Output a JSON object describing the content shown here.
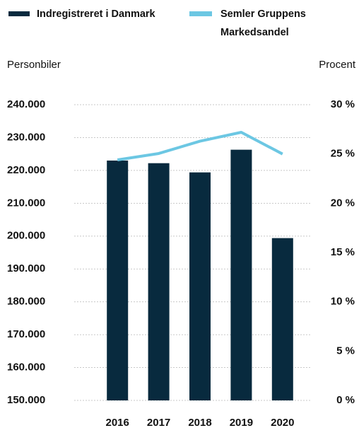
{
  "chart_data": {
    "type": "bar",
    "y_label": "Personbiler",
    "y2_label": "Procent",
    "categories": [
      "2016",
      "2017",
      "2018",
      "2019",
      "2020"
    ],
    "series": [
      {
        "name": "Indregistreret i Danmark",
        "type": "bar",
        "color": "#082a3e",
        "values": [
          223000,
          222200,
          219400,
          226300,
          199400
        ]
      },
      {
        "name": "Semler Gruppens Markedsandel",
        "type": "line",
        "axis": "y2",
        "color": "#6cc7e3",
        "values": [
          24.4,
          25.05,
          26.3,
          27.2,
          25.0
        ]
      }
    ],
    "ylim": [
      150000,
      240000
    ],
    "yticks": [
      {
        "value": 150000,
        "label": "150.000"
      },
      {
        "value": 160000,
        "label": "160.000"
      },
      {
        "value": 170000,
        "label": "170.000"
      },
      {
        "value": 180000,
        "label": "180.000"
      },
      {
        "value": 190000,
        "label": "190.000"
      },
      {
        "value": 200000,
        "label": "200.000"
      },
      {
        "value": 210000,
        "label": "210.000"
      },
      {
        "value": 220000,
        "label": "220.000"
      },
      {
        "value": 230000,
        "label": "230.000"
      },
      {
        "value": 240000,
        "label": "240.000"
      }
    ],
    "y2lim": [
      0,
      30
    ],
    "y2ticks": [
      {
        "value": 0,
        "label": "0 %"
      },
      {
        "value": 5,
        "label": "5 %"
      },
      {
        "value": 10,
        "label": "10 %"
      },
      {
        "value": 15,
        "label": "15 %"
      },
      {
        "value": 20,
        "label": "20 %"
      },
      {
        "value": 25,
        "label": "25 %"
      },
      {
        "value": 30,
        "label": "30 %"
      }
    ],
    "grid": true,
    "legend": "top"
  }
}
